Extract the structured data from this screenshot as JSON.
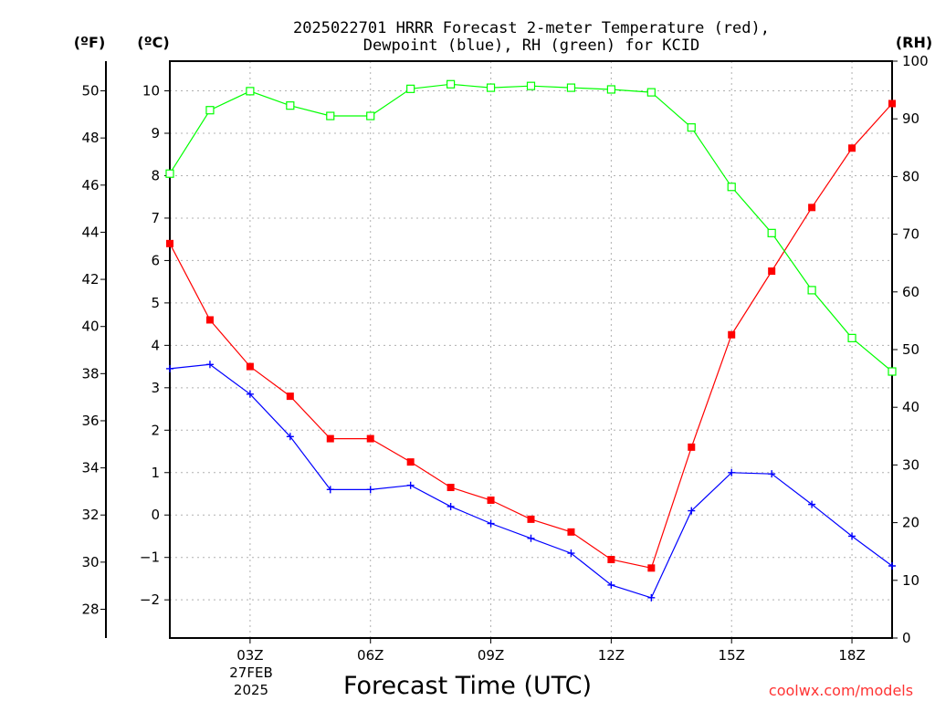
{
  "chart_data": {
    "type": "line",
    "title_line1": "2025022701 HRRR Forecast 2-meter Temperature (red),",
    "title_line2": "Dewpoint (blue), RH (green) for KCID",
    "xlabel": "Forecast Time (UTC)",
    "date_line1": "27FEB",
    "date_line2": "2025",
    "credit": "coolwx.com/models",
    "unit_f": "(ºF)",
    "unit_c": "(ºC)",
    "unit_rh": "(RH)",
    "x_hours": [
      1,
      2,
      3,
      4,
      5,
      6,
      7,
      8,
      9,
      10,
      11,
      12,
      13,
      14,
      15,
      16,
      17,
      18,
      19
    ],
    "x_range": [
      1,
      19
    ],
    "x_ticks": [
      {
        "hour": 3,
        "label": "03Z"
      },
      {
        "hour": 6,
        "label": "06Z"
      },
      {
        "hour": 9,
        "label": "09Z"
      },
      {
        "hour": 12,
        "label": "12Z"
      },
      {
        "hour": 15,
        "label": "15Z"
      },
      {
        "hour": 18,
        "label": "18Z"
      }
    ],
    "c_range": [
      -2.9,
      10.7
    ],
    "c_ticks": [
      {
        "v": -2,
        "label": "−2"
      },
      {
        "v": -1,
        "label": "−1"
      },
      {
        "v": 0,
        "label": "0"
      },
      {
        "v": 1,
        "label": "1"
      },
      {
        "v": 2,
        "label": "2"
      },
      {
        "v": 3,
        "label": "3"
      },
      {
        "v": 4,
        "label": "4"
      },
      {
        "v": 5,
        "label": "5"
      },
      {
        "v": 6,
        "label": "6"
      },
      {
        "v": 7,
        "label": "7"
      },
      {
        "v": 8,
        "label": "8"
      },
      {
        "v": 9,
        "label": "9"
      },
      {
        "v": 10,
        "label": "10"
      }
    ],
    "f_ticks": [
      {
        "v": 28,
        "label": "28"
      },
      {
        "v": 30,
        "label": "30"
      },
      {
        "v": 32,
        "label": "32"
      },
      {
        "v": 34,
        "label": "34"
      },
      {
        "v": 36,
        "label": "36"
      },
      {
        "v": 38,
        "label": "38"
      },
      {
        "v": 40,
        "label": "40"
      },
      {
        "v": 42,
        "label": "42"
      },
      {
        "v": 44,
        "label": "44"
      },
      {
        "v": 46,
        "label": "46"
      },
      {
        "v": 48,
        "label": "48"
      },
      {
        "v": 50,
        "label": "50"
      }
    ],
    "rh_range": [
      0,
      100
    ],
    "rh_ticks": [
      {
        "v": 0,
        "label": "0"
      },
      {
        "v": 10,
        "label": "10"
      },
      {
        "v": 20,
        "label": "20"
      },
      {
        "v": 30,
        "label": "30"
      },
      {
        "v": 40,
        "label": "40"
      },
      {
        "v": 50,
        "label": "50"
      },
      {
        "v": 60,
        "label": "60"
      },
      {
        "v": 70,
        "label": "70"
      },
      {
        "v": 80,
        "label": "80"
      },
      {
        "v": 90,
        "label": "90"
      },
      {
        "v": 100,
        "label": "100"
      }
    ],
    "grid": true,
    "series": [
      {
        "name": "Temperature",
        "units": "C",
        "axis": "c",
        "color": "#ff0000",
        "marker": "filled-square",
        "values": [
          6.4,
          4.6,
          3.5,
          2.8,
          1.8,
          1.8,
          1.25,
          0.65,
          0.35,
          -0.1,
          -0.4,
          -1.05,
          -1.25,
          1.6,
          4.25,
          5.75,
          7.25,
          8.65,
          9.7
        ]
      },
      {
        "name": "Dewpoint",
        "units": "C",
        "axis": "c",
        "color": "#0000ff",
        "marker": "plus",
        "values": [
          3.45,
          3.55,
          2.85,
          1.85,
          0.6,
          0.6,
          0.7,
          0.2,
          -0.2,
          -0.55,
          -0.9,
          -1.65,
          -1.95,
          0.1,
          1.0,
          0.97,
          0.25,
          -0.5,
          -1.2
        ]
      },
      {
        "name": "RH",
        "units": "%",
        "axis": "rh",
        "color": "#00ff00",
        "marker": "open-square",
        "values": [
          80.5,
          91.5,
          94.8,
          92.3,
          90.5,
          90.5,
          95.2,
          96.0,
          95.4,
          95.7,
          95.4,
          95.1,
          94.6,
          88.5,
          78.2,
          70.2,
          60.3,
          52.0,
          46.2
        ]
      }
    ]
  }
}
